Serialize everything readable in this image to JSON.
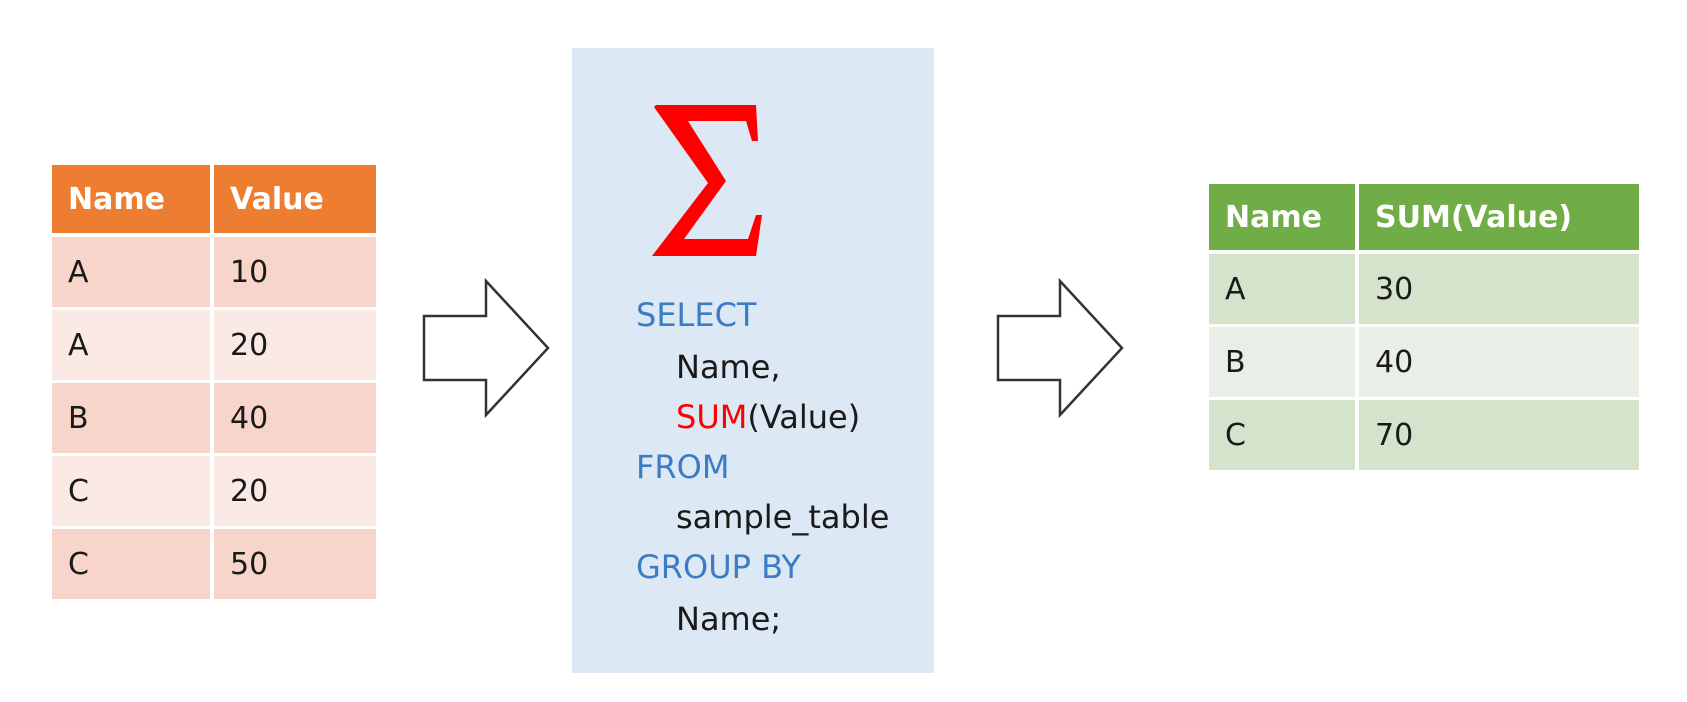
{
  "input_table": {
    "headers": [
      "Name",
      "Value"
    ],
    "rows": [
      [
        "A",
        "10"
      ],
      [
        "A",
        "20"
      ],
      [
        "B",
        "40"
      ],
      [
        "C",
        "20"
      ],
      [
        "C",
        "50"
      ]
    ]
  },
  "query": {
    "sigma": "Σ",
    "select_kw": "SELECT",
    "col_name": "Name,",
    "sum_fn": "SUM",
    "sum_arg": "(Value)",
    "from_kw": "FROM",
    "table_name": "sample_table",
    "group_by_kw": "GROUP BY",
    "group_col": "Name;"
  },
  "output_table": {
    "headers": [
      "Name",
      "SUM(Value)"
    ],
    "rows": [
      [
        "A",
        "30"
      ],
      [
        "B",
        "40"
      ],
      [
        "C",
        "70"
      ]
    ]
  },
  "colors": {
    "input_header": "#ed7d31",
    "output_header": "#70ad47",
    "keyword": "#3b7cc4",
    "function": "#ff0000",
    "panel": "#dde8f5"
  },
  "icons": {
    "arrow": "right-arrow-icon",
    "sigma": "sigma-icon"
  }
}
